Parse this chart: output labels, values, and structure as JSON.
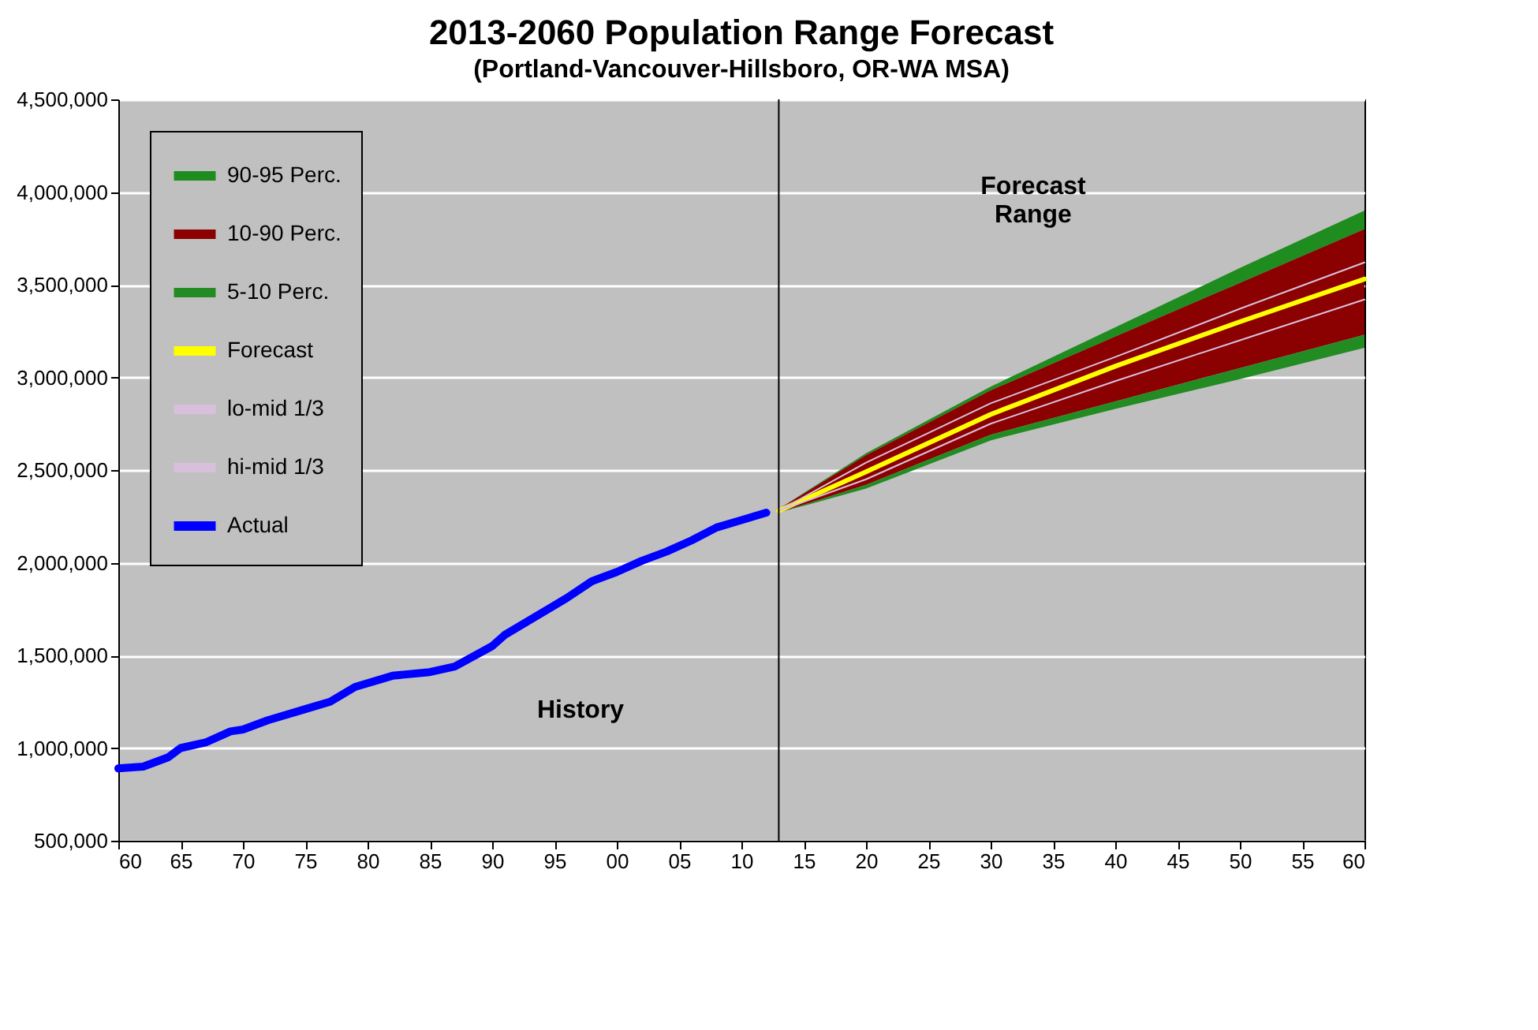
{
  "chart_data": {
    "type": "line",
    "title": "2013-2060 Population Range Forecast",
    "subtitle": "(Portland-Vancouver-Hillsboro, OR-WA MSA)",
    "series": [
      {
        "name": "90-95 Perc.",
        "type": "area",
        "color": "#1e8c1e",
        "x": [
          2013,
          2020,
          2030,
          2040,
          2050,
          2060
        ],
        "values": [
          null,
          null,
          null,
          null,
          null,
          null
        ],
        "upper": [
          2290000,
          2590000,
          2950000,
          3270000,
          3590000,
          3900000
        ],
        "lower": [
          2290000,
          2580000,
          2930000,
          3220000,
          3510000,
          3800000
        ]
      },
      {
        "name": "10-90 Perc.",
        "type": "area",
        "color": "#8b0000",
        "x": [
          2013,
          2020,
          2030,
          2040,
          2050,
          2060
        ],
        "values": [
          null,
          null,
          null,
          null,
          null,
          null
        ],
        "upper": [
          2290000,
          2580000,
          2930000,
          3220000,
          3510000,
          3800000
        ],
        "lower": [
          2270000,
          2420000,
          2690000,
          2870000,
          3050000,
          3230000
        ]
      },
      {
        "name": "5-10 Perc.",
        "type": "area",
        "color": "#228b22",
        "x": [
          2013,
          2020,
          2030,
          2040,
          2050,
          2060
        ],
        "values": [
          null,
          null,
          null,
          null,
          null,
          null
        ],
        "upper": [
          2270000,
          2420000,
          2690000,
          2870000,
          3050000,
          3230000
        ],
        "lower": [
          2270000,
          2400000,
          2660000,
          2830000,
          2990000,
          3160000
        ]
      },
      {
        "name": "Forecast",
        "type": "line",
        "color": "#ffff00",
        "x": [
          2013,
          2020,
          2030,
          2040,
          2050,
          2060
        ],
        "values": [
          2280000,
          2490000,
          2800000,
          3060000,
          3300000,
          3530000
        ]
      },
      {
        "name": "lo-mid 1/3",
        "type": "line",
        "color": "#d8c0dc",
        "x": [
          2013,
          2020,
          2030,
          2040,
          2050,
          2060
        ],
        "values": [
          2280000,
          2450000,
          2750000,
          2980000,
          3200000,
          3420000
        ]
      },
      {
        "name": "hi-mid 1/3",
        "type": "line",
        "color": "#d8c0dc",
        "x": [
          2013,
          2020,
          2030,
          2040,
          2050,
          2060
        ],
        "values": [
          2280000,
          2540000,
          2860000,
          3110000,
          3370000,
          3620000
        ]
      },
      {
        "name": "Actual",
        "type": "line",
        "color": "#0000ff",
        "x": [
          1960,
          1962,
          1964,
          1965,
          1967,
          1969,
          1970,
          1972,
          1975,
          1977,
          1979,
          1982,
          1985,
          1987,
          1990,
          1991,
          1996,
          1998,
          2000,
          2002,
          2004,
          2006,
          2008,
          2010,
          2012
        ],
        "values": [
          890000,
          900000,
          950000,
          1000000,
          1030000,
          1090000,
          1100000,
          1150000,
          1210000,
          1250000,
          1330000,
          1390000,
          1410000,
          1440000,
          1550000,
          1610000,
          1810000,
          1900000,
          1950000,
          2010000,
          2060000,
          2120000,
          2190000,
          2230000,
          2270000
        ]
      }
    ],
    "ref_lines": [
      {
        "axis": "x",
        "value": 2013,
        "color": "#000000"
      }
    ],
    "annotations": [
      "Forecast\nRange",
      "History"
    ],
    "xlim": [
      1960,
      2060
    ],
    "xticks": [
      {
        "value": 1960,
        "label": "60"
      },
      {
        "value": 1965,
        "label": "65"
      },
      {
        "value": 1970,
        "label": "70"
      },
      {
        "value": 1975,
        "label": "75"
      },
      {
        "value": 1980,
        "label": "80"
      },
      {
        "value": 1985,
        "label": "85"
      },
      {
        "value": 1990,
        "label": "90"
      },
      {
        "value": 1995,
        "label": "95"
      },
      {
        "value": 2000,
        "label": "00"
      },
      {
        "value": 2005,
        "label": "05"
      },
      {
        "value": 2010,
        "label": "10"
      },
      {
        "value": 2015,
        "label": "15"
      },
      {
        "value": 2020,
        "label": "20"
      },
      {
        "value": 2025,
        "label": "25"
      },
      {
        "value": 2030,
        "label": "30"
      },
      {
        "value": 2035,
        "label": "35"
      },
      {
        "value": 2040,
        "label": "40"
      },
      {
        "value": 2045,
        "label": "45"
      },
      {
        "value": 2050,
        "label": "50"
      },
      {
        "value": 2055,
        "label": "55"
      },
      {
        "value": 2060,
        "label": "60"
      }
    ],
    "ylim": [
      500000,
      4500000
    ],
    "yticks": [
      {
        "value": 500000,
        "label": "500,000"
      },
      {
        "value": 1000000,
        "label": "1,000,000"
      },
      {
        "value": 1500000,
        "label": "1,500,000"
      },
      {
        "value": 2000000,
        "label": "2,000,000"
      },
      {
        "value": 2500000,
        "label": "2,500,000"
      },
      {
        "value": 3000000,
        "label": "3,000,000"
      },
      {
        "value": 3500000,
        "label": "3,500,000"
      },
      {
        "value": 4000000,
        "label": "4,000,000"
      },
      {
        "value": 4500000,
        "label": "4,500,000"
      }
    ],
    "grid": "y",
    "legend": "top left",
    "line_style": "solid",
    "marker": "none"
  }
}
